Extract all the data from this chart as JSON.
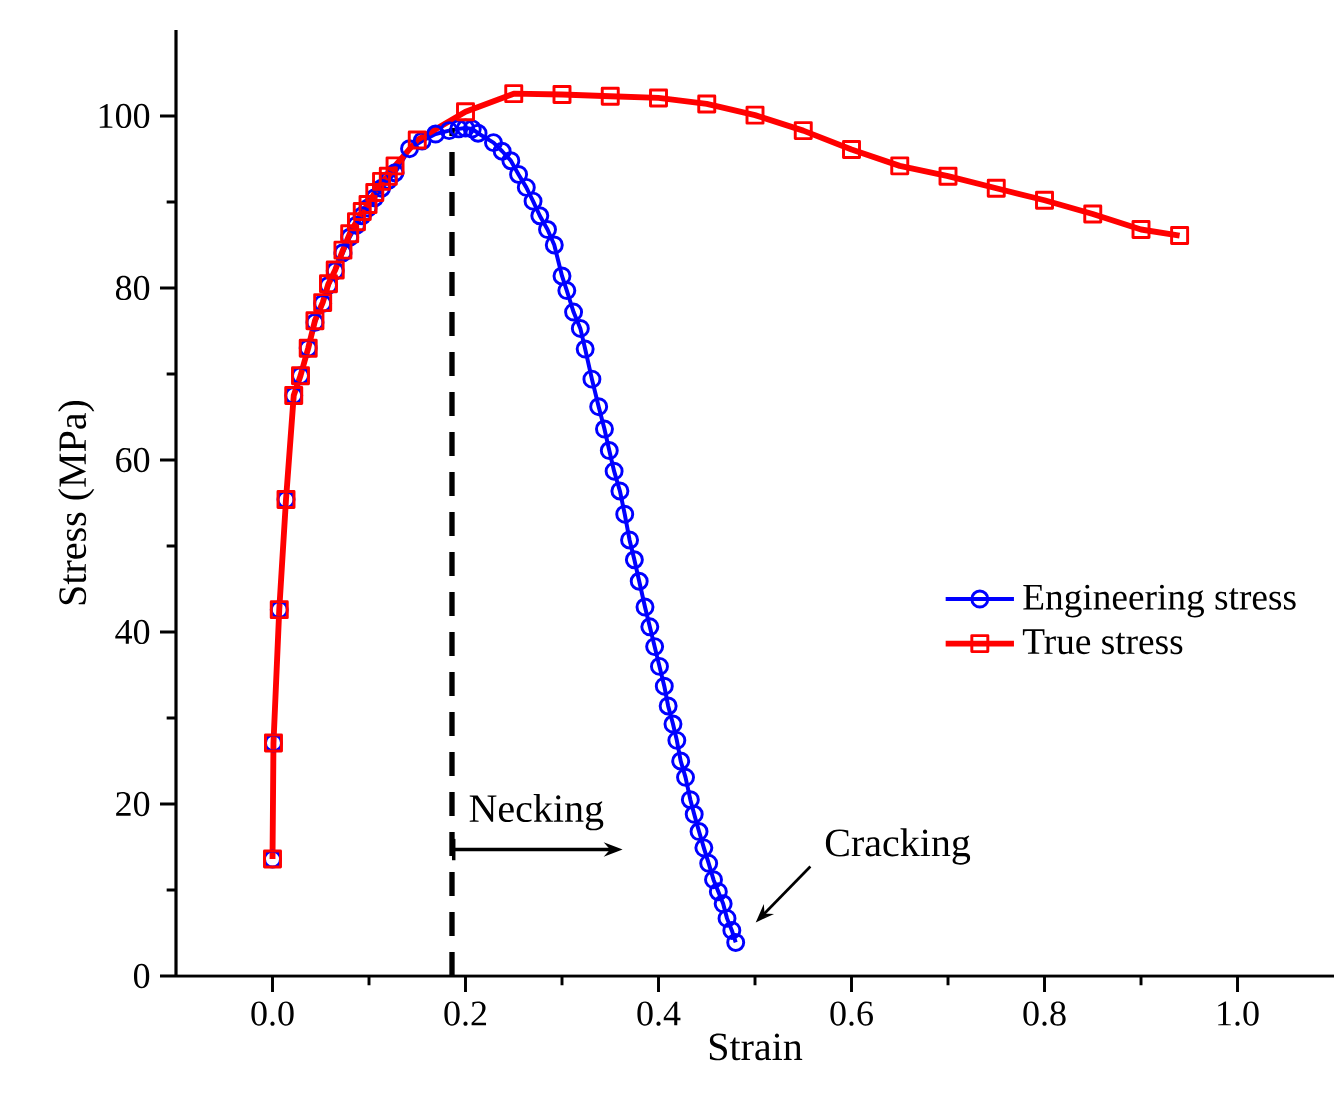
{
  "chart_data": {
    "type": "line",
    "xlabel": "Strain",
    "ylabel": "Stress (MPa)",
    "xlim": [
      -0.1,
      1.1
    ],
    "ylim": [
      0,
      110
    ],
    "xticks": [
      {
        "value": 0,
        "label": "0.0"
      },
      0.2,
      0.4,
      0.6,
      0.8,
      {
        "value": 1,
        "label": "1.0"
      }
    ],
    "yticks": [
      0,
      20,
      40,
      60,
      80,
      100
    ],
    "legend": "right",
    "grid": false,
    "series": [
      {
        "name": "Engineering stress",
        "color": "#0000ff",
        "marker": "circle",
        "x": [
          0,
          0.001,
          0.007,
          0.014,
          0.022,
          0.029,
          0.037,
          0.044,
          0.052,
          0.058,
          0.065,
          0.073,
          0.08,
          0.087,
          0.093,
          0.099,
          0.106,
          0.113,
          0.12,
          0.127,
          0.142,
          0.155,
          0.169,
          0.183,
          0.193,
          0.2,
          0.207,
          0.213,
          0.229,
          0.238,
          0.247,
          0.255,
          0.263,
          0.27,
          0.277,
          0.285,
          0.292,
          0.3,
          0.305,
          0.312,
          0.319,
          0.324,
          0.331,
          0.338,
          0.344,
          0.349,
          0.354,
          0.36,
          0.365,
          0.37,
          0.375,
          0.38,
          0.386,
          0.391,
          0.396,
          0.401,
          0.406,
          0.41,
          0.415,
          0.419,
          0.423,
          0.428,
          0.433,
          0.437,
          0.442,
          0.447,
          0.452,
          0.457,
          0.462,
          0.467,
          0.471,
          0.476,
          0.48
        ],
        "values": [
          13.6,
          27.1,
          42.6,
          55.4,
          67.5,
          69.8,
          73.0,
          76.0,
          78.2,
          80.3,
          82.0,
          84.1,
          85.9,
          87.3,
          88.4,
          89.3,
          90.5,
          91.6,
          92.5,
          93.4,
          96.2,
          97.1,
          97.9,
          98.3,
          98.5,
          98.6,
          98.5,
          98.0,
          96.9,
          95.9,
          94.8,
          93.2,
          91.7,
          90.1,
          88.4,
          86.8,
          85.0,
          81.4,
          79.7,
          77.2,
          75.3,
          72.9,
          69.4,
          66.2,
          63.6,
          61.1,
          58.7,
          56.4,
          53.7,
          50.7,
          48.4,
          45.9,
          42.9,
          40.6,
          38.3,
          36.0,
          33.7,
          31.4,
          29.3,
          27.4,
          25.0,
          23.1,
          20.5,
          18.8,
          16.8,
          14.9,
          13.1,
          11.2,
          9.8,
          8.4,
          6.7,
          5.3,
          3.9
        ]
      },
      {
        "name": "True stress",
        "color": "#ff0000",
        "marker": "square",
        "x": [
          0,
          0.001,
          0.007,
          0.014,
          0.022,
          0.029,
          0.037,
          0.044,
          0.052,
          0.058,
          0.065,
          0.073,
          0.08,
          0.087,
          0.093,
          0.099,
          0.106,
          0.113,
          0.12,
          0.127,
          0.15,
          0.2,
          0.25,
          0.3,
          0.35,
          0.4,
          0.45,
          0.5,
          0.55,
          0.6,
          0.65,
          0.7,
          0.75,
          0.8,
          0.85,
          0.9,
          0.94
        ],
        "values": [
          13.6,
          27.1,
          42.6,
          55.4,
          67.5,
          69.8,
          73.0,
          76.2,
          78.3,
          80.5,
          82.1,
          84.4,
          86.3,
          87.7,
          88.9,
          89.7,
          91.1,
          92.4,
          93.0,
          94.2,
          97.2,
          100.5,
          102.6,
          102.5,
          102.3,
          102.1,
          101.4,
          100.1,
          98.3,
          96.1,
          94.2,
          93.0,
          91.6,
          90.2,
          88.6,
          86.8,
          86.1
        ]
      }
    ],
    "ref_lines": [
      {
        "axis": "x",
        "value": 0.186,
        "color": "#000000",
        "line_style": "dashed"
      }
    ],
    "annotations": [
      {
        "text": "Necking",
        "x": 0.186,
        "y": 14.7
      },
      {
        "text": "Cracking",
        "x": 0.48,
        "y": 3.9
      }
    ]
  }
}
